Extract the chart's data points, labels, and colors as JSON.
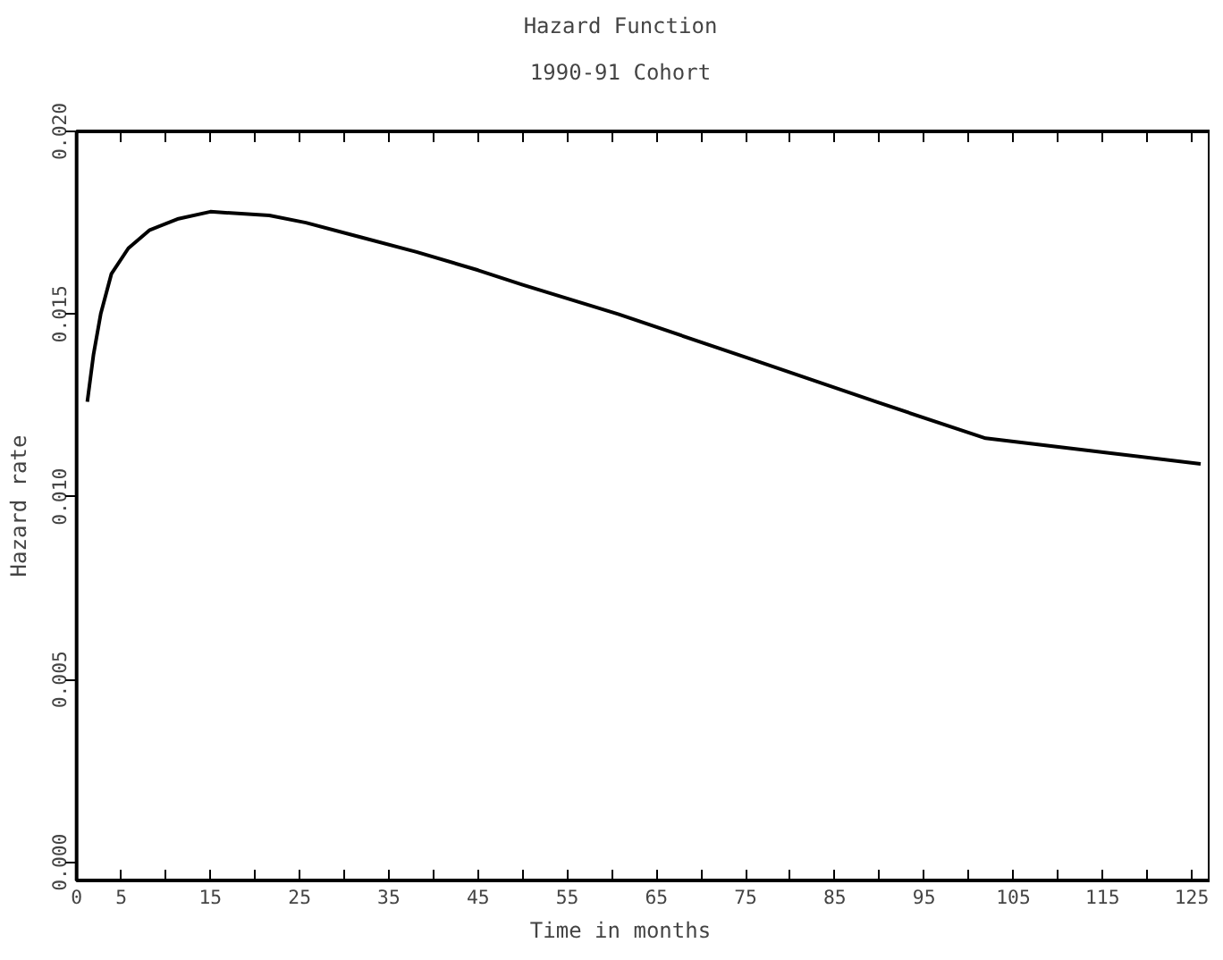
{
  "chart_data": {
    "type": "line",
    "title": "Hazard Function",
    "subtitle": "1990-91 Cohort",
    "xlabel": "Time in months",
    "ylabel": "Hazard rate",
    "x": [
      1.2,
      1.9,
      2.7,
      3.9,
      5.8,
      8.2,
      11.3,
      15,
      21.6,
      25.7,
      31.9,
      38.1,
      45,
      50,
      60.7,
      75.2,
      89.6,
      101.9,
      126
    ],
    "series": [
      {
        "color": "#000000",
        "values": [
          0.0126,
          0.0139,
          0.015,
          0.0161,
          0.0168,
          0.0173,
          0.0176,
          0.0178,
          0.0177,
          0.0175,
          0.0171,
          0.0167,
          0.0162,
          0.0158,
          0.015,
          0.0138,
          0.0126,
          0.0116,
          0.0109
        ]
      }
    ],
    "xlim": [
      0,
      127
    ],
    "ylim": [
      -0.0005,
      0.02
    ],
    "xticks": [
      0,
      5,
      {
        "value": 10,
        "label": null
      },
      15,
      {
        "value": 20,
        "label": null
      },
      25,
      {
        "value": 30,
        "label": null
      },
      35,
      {
        "value": 40,
        "label": null
      },
      45,
      {
        "value": 50,
        "label": null
      },
      55,
      {
        "value": 60,
        "label": null
      },
      65,
      {
        "value": 70,
        "label": null
      },
      75,
      {
        "value": 80,
        "label": null
      },
      85,
      {
        "value": 90,
        "label": null
      },
      95,
      {
        "value": 100,
        "label": null
      },
      105,
      {
        "value": 110,
        "label": null
      },
      115,
      {
        "value": 120,
        "label": null
      },
      125
    ],
    "yticks": [
      {
        "value": 0,
        "label": "0.000"
      },
      {
        "value": 0.005,
        "label": "0.005"
      },
      {
        "value": 0.01,
        "label": "0.010"
      },
      {
        "value": 0.015,
        "label": "0.015"
      },
      {
        "value": 0.02,
        "label": "0.020"
      }
    ],
    "grid": false,
    "marker": "none",
    "line_style": "solid"
  }
}
